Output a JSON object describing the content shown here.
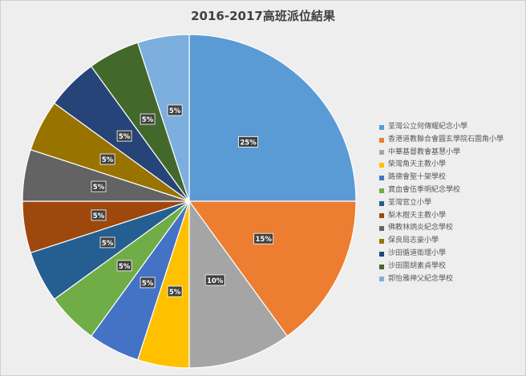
{
  "chart_data": {
    "type": "pie",
    "title": "2016-2017高班派位結果",
    "categories": [
      "荃灣公立何傳耀紀念小學",
      "香港道教聯合會圓玄學院石圍角小學",
      "中華基督教會基慧小學",
      "柴灣角天主教小學",
      "路德會聖十架學校",
      "寶血會伍季明紀念學校",
      "荃灣官立小學",
      "梨木樹天主教小學",
      "佛教林炳炎紀念學校",
      "保良局志豪小學",
      "沙田循道衛理小學",
      "沙田圍胡素貞學校",
      "郭怡雅神父紀念學校"
    ],
    "values": [
      25,
      15,
      10,
      5,
      5,
      5,
      5,
      5,
      5,
      5,
      5,
      5,
      5
    ],
    "labels": [
      "25%",
      "15%",
      "10%",
      "5%",
      "5%",
      "5%",
      "5%",
      "5%",
      "5%",
      "5%",
      "5%",
      "5%",
      "5%"
    ],
    "colors": [
      "#5b9bd5",
      "#ed7d31",
      "#a5a5a5",
      "#ffc000",
      "#4472c4",
      "#70ad47",
      "#255e91",
      "#9e480e",
      "#636363",
      "#997300",
      "#264478",
      "#43682b",
      "#7cafdd"
    ],
    "legend_position": "right"
  }
}
